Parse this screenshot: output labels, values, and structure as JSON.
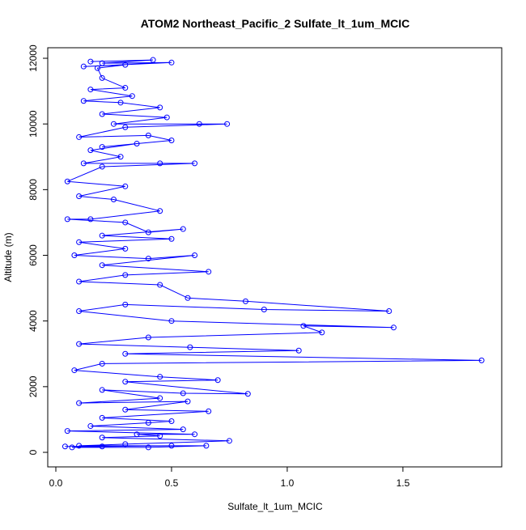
{
  "chart_data": {
    "type": "line",
    "title": "ATOM2 Northeast_Pacific_2 Sulfate_lt_1um_MCIC",
    "xlabel": "Sulfate_lt_1um_MCIC",
    "ylabel": "Altitude (m)",
    "color": "#0000ff",
    "markers": true,
    "x": [
      0.15,
      0.42,
      0.2,
      0.5,
      0.12,
      0.3,
      0.18,
      0.2,
      0.3,
      0.15,
      0.33,
      0.12,
      0.28,
      0.45,
      0.2,
      0.48,
      0.25,
      0.62,
      0.74,
      0.3,
      0.1,
      0.4,
      0.5,
      0.2,
      0.35,
      0.15,
      0.28,
      0.12,
      0.45,
      0.6,
      0.2,
      0.05,
      0.3,
      0.1,
      0.25,
      0.45,
      0.15,
      0.05,
      0.3,
      0.4,
      0.55,
      0.2,
      0.5,
      0.1,
      0.3,
      0.08,
      0.4,
      0.6,
      0.2,
      0.66,
      0.3,
      0.1,
      0.45,
      0.57,
      0.82,
      1.44,
      0.9,
      0.3,
      0.1,
      0.5,
      1.46,
      1.07,
      1.15,
      0.4,
      0.1,
      0.58,
      1.05,
      0.3,
      1.84,
      0.2,
      0.08,
      0.45,
      0.7,
      0.3,
      0.83,
      0.55,
      0.2,
      0.45,
      0.1,
      0.57,
      0.3,
      0.66,
      0.2,
      0.5,
      0.4,
      0.15,
      0.55,
      0.05,
      0.6,
      0.35,
      0.45,
      0.2,
      0.75,
      0.3,
      0.1,
      0.65,
      0.4,
      0.07,
      0.2,
      0.5,
      0.04
    ],
    "values": [
      11900,
      11950,
      11850,
      11870,
      11750,
      11800,
      11700,
      11400,
      11100,
      11050,
      10850,
      10700,
      10650,
      10500,
      10300,
      10200,
      10000,
      10000,
      10000,
      9900,
      9600,
      9650,
      9500,
      9300,
      9400,
      9200,
      9000,
      8800,
      8800,
      8800,
      8700,
      8250,
      8100,
      7800,
      7700,
      7350,
      7100,
      7100,
      7000,
      6700,
      6800,
      6600,
      6500,
      6400,
      6200,
      6000,
      5900,
      6000,
      5700,
      5500,
      5400,
      5200,
      5100,
      4700,
      4600,
      4300,
      4350,
      4500,
      4300,
      4000,
      3800,
      3850,
      3650,
      3500,
      3300,
      3200,
      3100,
      3000,
      2800,
      2700,
      2500,
      2300,
      2200,
      2150,
      1780,
      1800,
      1900,
      1650,
      1500,
      1550,
      1300,
      1250,
      1050,
      950,
      900,
      800,
      700,
      650,
      550,
      550,
      500,
      450,
      350,
      250,
      200,
      200,
      150,
      150,
      180,
      200,
      180
    ],
    "xlim": [
      -0.035,
      1.927
    ],
    "ylim": [
      -443,
      12321
    ],
    "xticks": [
      {
        "value": 0,
        "label": "0.0"
      },
      0.5,
      {
        "value": 1,
        "label": "1.0"
      },
      1.5
    ],
    "yticks": [
      0,
      2000,
      4000,
      6000,
      8000,
      10000,
      12000
    ]
  }
}
